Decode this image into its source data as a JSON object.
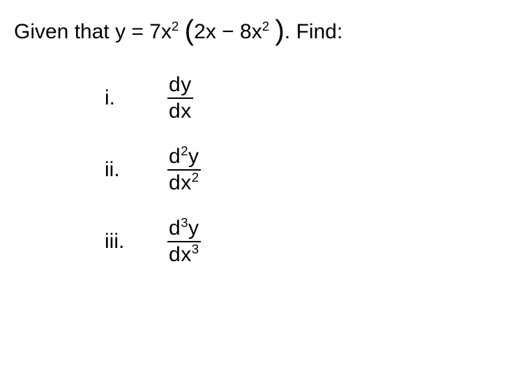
{
  "page": {
    "background_color": "#ffffff",
    "text_color": "#000000",
    "font_family": "Arial",
    "base_fontsize_pt": 22
  },
  "intro": {
    "prefix": "Given that ",
    "equation": {
      "lhs_var": "y",
      "equals": " = ",
      "coeff1": "7",
      "var1": "x",
      "exp1": "2",
      "open_paren": "(",
      "term2_coeff": "2",
      "term2_var": "x",
      "minus": " − ",
      "term3_coeff": "8",
      "term3_var": "x",
      "term3_exp": "2",
      "close_paren": ")"
    },
    "suffix": ". Find:"
  },
  "items": [
    {
      "roman": "i.",
      "numerator": {
        "d": "d",
        "d_exp": "",
        "y": "y"
      },
      "denominator": {
        "d": "d",
        "x": "x",
        "x_exp": ""
      }
    },
    {
      "roman": "ii.",
      "numerator": {
        "d": "d",
        "d_exp": "2",
        "y": "y"
      },
      "denominator": {
        "d": "d",
        "x": "x",
        "x_exp": "2"
      }
    },
    {
      "roman": "iii.",
      "numerator": {
        "d": "d",
        "d_exp": "3",
        "y": "y"
      },
      "denominator": {
        "d": "d",
        "x": "x",
        "x_exp": "3"
      }
    }
  ]
}
